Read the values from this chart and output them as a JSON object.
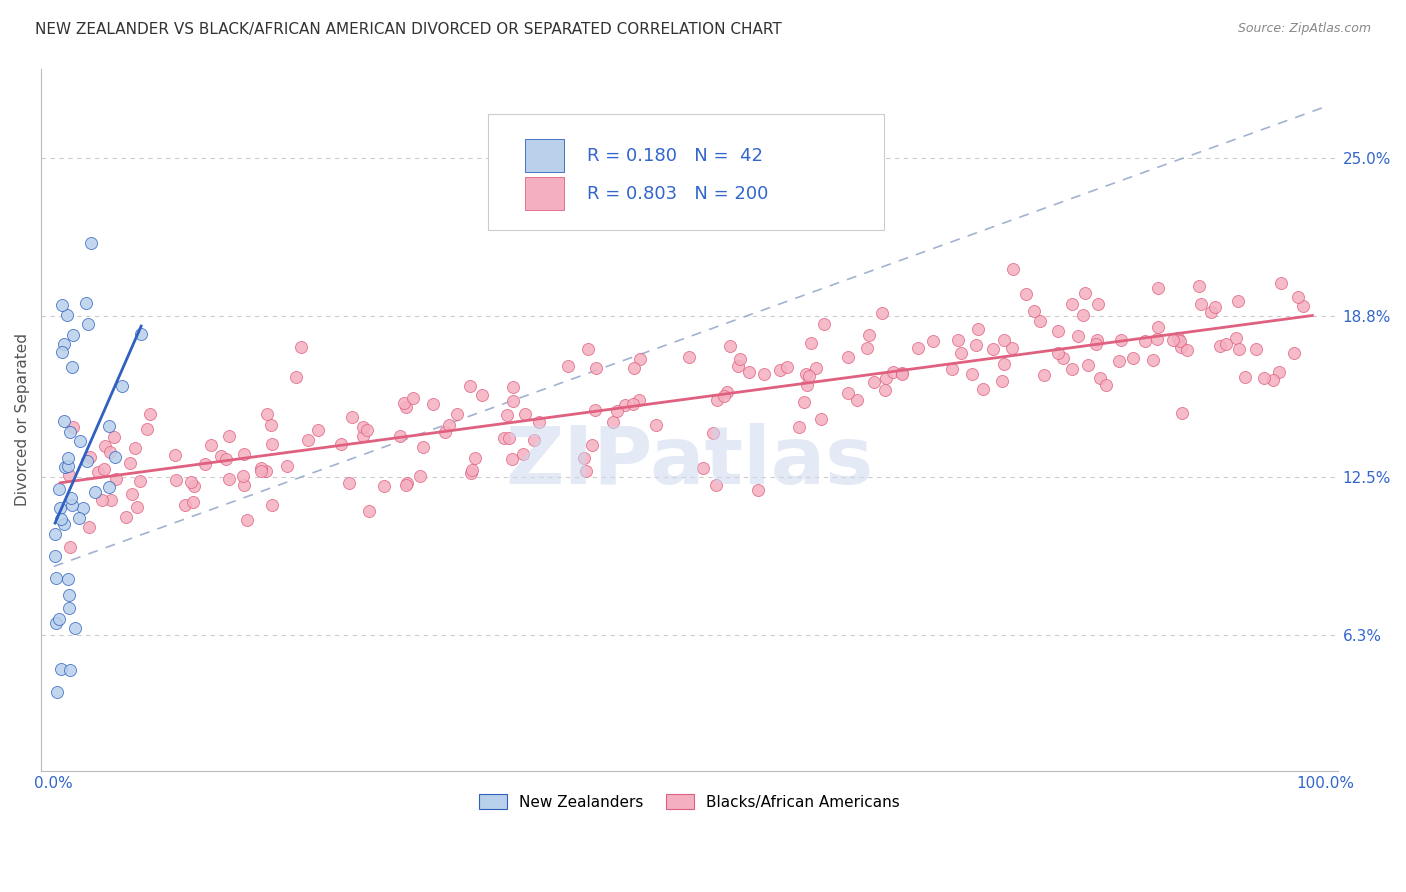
{
  "title": "NEW ZEALANDER VS BLACK/AFRICAN AMERICAN DIVORCED OR SEPARATED CORRELATION CHART",
  "source": "Source: ZipAtlas.com",
  "ylabel": "Divorced or Separated",
  "watermark": "ZIPatlas",
  "legend1_label": "New Zealanders",
  "legend2_label": "Blacks/African Americans",
  "R1": 0.18,
  "N1": 42,
  "R2": 0.803,
  "N2": 200,
  "color1": "#b8d0ea",
  "color2": "#f4b0c0",
  "line1_color": "#3060c0",
  "line2_color": "#e06080",
  "dash_color": "#99aacc",
  "ytick_labels": [
    "6.3%",
    "12.5%",
    "18.8%",
    "25.0%"
  ],
  "ytick_values": [
    0.063,
    0.125,
    0.188,
    0.25
  ],
  "xtick_labels": [
    "0.0%",
    "100.0%"
  ],
  "xlim": [
    -0.01,
    1.01
  ],
  "ylim": [
    0.01,
    0.285
  ],
  "background_color": "#ffffff",
  "grid_color": "#cccccc",
  "title_color": "#333333",
  "title_fontsize": 11,
  "axis_label_color": "#3366cc"
}
